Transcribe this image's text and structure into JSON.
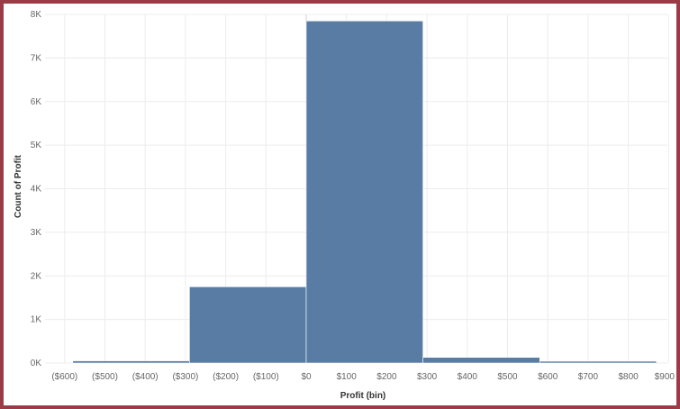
{
  "colors": {
    "bar": "#587ca4",
    "frame": "#9a3b45",
    "grid": "#ececec"
  },
  "chart_data": {
    "type": "bar",
    "title": "",
    "xlabel": "Profit (bin)",
    "ylabel": "Count of Profit",
    "ylim": [
      0,
      8000
    ],
    "xlim": [
      -600,
      900
    ],
    "y_ticks": [
      "0K",
      "1K",
      "2K",
      "3K",
      "4K",
      "5K",
      "6K",
      "7K",
      "8K"
    ],
    "y_tick_values": [
      0,
      1000,
      2000,
      3000,
      4000,
      5000,
      6000,
      7000,
      8000
    ],
    "x_ticks": [
      "($600)",
      "($500)",
      "($400)",
      "($300)",
      "($200)",
      "($100)",
      "$0",
      "$100",
      "$200",
      "$300",
      "$400",
      "$500",
      "$600",
      "$700",
      "$800",
      "$900"
    ],
    "x_tick_values": [
      -600,
      -500,
      -400,
      -300,
      -200,
      -100,
      0,
      100,
      200,
      300,
      400,
      500,
      600,
      700,
      800,
      900
    ],
    "bins": [
      {
        "start": -580,
        "end": -290,
        "value": 50
      },
      {
        "start": -290,
        "end": 0,
        "value": 1750
      },
      {
        "start": 0,
        "end": 290,
        "value": 7850
      },
      {
        "start": 290,
        "end": 580,
        "value": 130
      },
      {
        "start": 580,
        "end": 870,
        "value": 40
      }
    ],
    "grid": true,
    "legend": "none"
  }
}
